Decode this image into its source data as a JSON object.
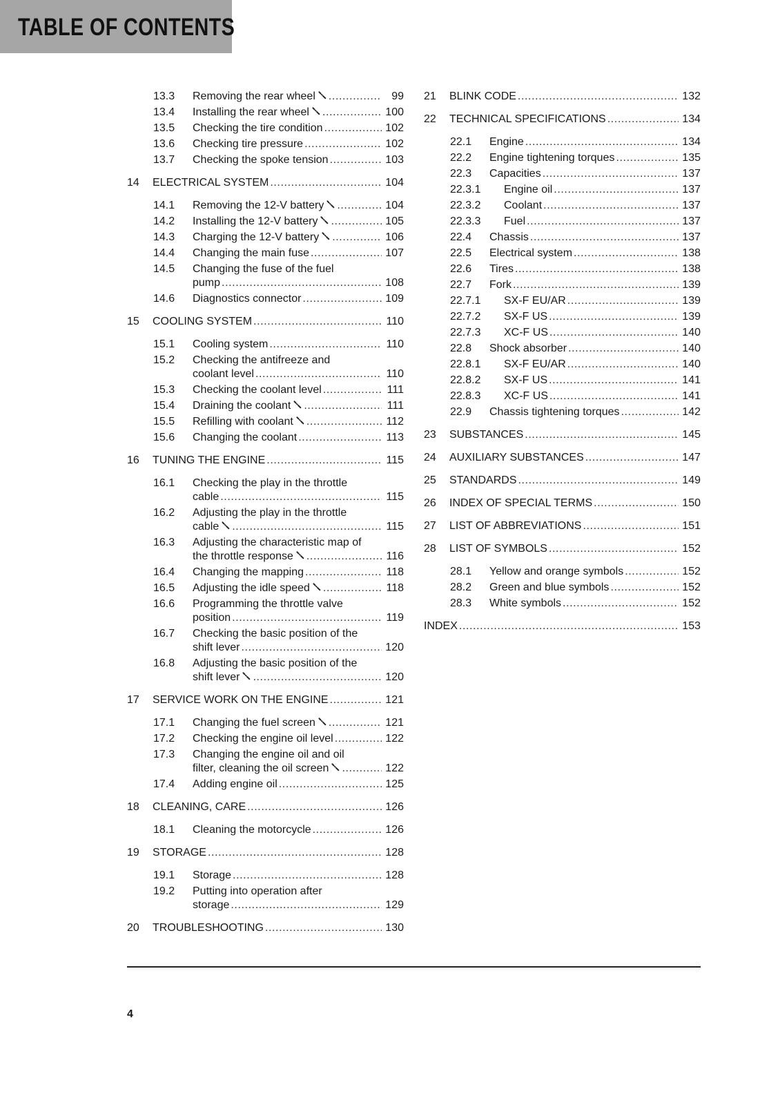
{
  "header": {
    "title": "TABLE OF CONTENTS"
  },
  "page_number": "4",
  "icons": {
    "wrench": "wrench-icon"
  },
  "left_column": [
    {
      "level": 1,
      "num": "13.3",
      "lines": [
        "Removing the rear wheel"
      ],
      "wrench": true,
      "page": "99"
    },
    {
      "level": 1,
      "num": "13.4",
      "lines": [
        "Installing the rear wheel"
      ],
      "wrench": true,
      "page": "100"
    },
    {
      "level": 1,
      "num": "13.5",
      "lines": [
        "Checking the tire condition"
      ],
      "page": "102"
    },
    {
      "level": 1,
      "num": "13.6",
      "lines": [
        "Checking tire pressure"
      ],
      "page": "102"
    },
    {
      "level": 1,
      "num": "13.7",
      "lines": [
        "Checking the spoke tension"
      ],
      "page": "103"
    },
    {
      "level": 0,
      "num": "14",
      "lines": [
        "ELECTRICAL SYSTEM"
      ],
      "page": "104"
    },
    {
      "level": 1,
      "num": "14.1",
      "lines": [
        "Removing the 12-V battery"
      ],
      "wrench": true,
      "page": "104"
    },
    {
      "level": 1,
      "num": "14.2",
      "lines": [
        "Installing the 12-V battery"
      ],
      "wrench": true,
      "page": "105"
    },
    {
      "level": 1,
      "num": "14.3",
      "lines": [
        "Charging the 12-V battery"
      ],
      "wrench": true,
      "page": "106"
    },
    {
      "level": 1,
      "num": "14.4",
      "lines": [
        "Changing the main fuse"
      ],
      "page": "107"
    },
    {
      "level": 1,
      "num": "14.5",
      "lines": [
        "Changing the fuse of the fuel",
        "pump"
      ],
      "page": "108"
    },
    {
      "level": 1,
      "num": "14.6",
      "lines": [
        "Diagnostics connector"
      ],
      "page": "109"
    },
    {
      "level": 0,
      "num": "15",
      "lines": [
        "COOLING SYSTEM"
      ],
      "page": "110"
    },
    {
      "level": 1,
      "num": "15.1",
      "lines": [
        "Cooling system"
      ],
      "page": "110"
    },
    {
      "level": 1,
      "num": "15.2",
      "lines": [
        "Checking the antifreeze and",
        "coolant level"
      ],
      "page": "110"
    },
    {
      "level": 1,
      "num": "15.3",
      "lines": [
        "Checking the coolant level"
      ],
      "page": "111"
    },
    {
      "level": 1,
      "num": "15.4",
      "lines": [
        "Draining the coolant"
      ],
      "wrench": true,
      "page": "111"
    },
    {
      "level": 1,
      "num": "15.5",
      "lines": [
        "Refilling with coolant"
      ],
      "wrench": true,
      "page": "112"
    },
    {
      "level": 1,
      "num": "15.6",
      "lines": [
        "Changing the coolant"
      ],
      "page": "113"
    },
    {
      "level": 0,
      "num": "16",
      "lines": [
        "TUNING THE ENGINE"
      ],
      "page": "115"
    },
    {
      "level": 1,
      "num": "16.1",
      "lines": [
        "Checking the play in the throttle",
        "cable"
      ],
      "page": "115"
    },
    {
      "level": 1,
      "num": "16.2",
      "lines": [
        "Adjusting the play in the throttle",
        "cable"
      ],
      "wrench": true,
      "page": "115"
    },
    {
      "level": 1,
      "num": "16.3",
      "lines": [
        "Adjusting the characteristic map of",
        "the throttle response"
      ],
      "wrench": true,
      "page": "116"
    },
    {
      "level": 1,
      "num": "16.4",
      "lines": [
        "Changing the mapping"
      ],
      "page": "118"
    },
    {
      "level": 1,
      "num": "16.5",
      "lines": [
        "Adjusting the idle speed"
      ],
      "wrench": true,
      "page": "118"
    },
    {
      "level": 1,
      "num": "16.6",
      "lines": [
        "Programming the throttle valve",
        "position"
      ],
      "page": "119"
    },
    {
      "level": 1,
      "num": "16.7",
      "lines": [
        "Checking the basic position of the",
        "shift lever"
      ],
      "page": "120"
    },
    {
      "level": 1,
      "num": "16.8",
      "lines": [
        "Adjusting the basic position of the",
        "shift lever"
      ],
      "wrench": true,
      "page": "120"
    },
    {
      "level": 0,
      "num": "17",
      "lines": [
        "SERVICE WORK ON THE ENGINE"
      ],
      "page": "121"
    },
    {
      "level": 1,
      "num": "17.1",
      "lines": [
        "Changing the fuel screen"
      ],
      "wrench": true,
      "page": "121"
    },
    {
      "level": 1,
      "num": "17.2",
      "lines": [
        "Checking the engine oil level"
      ],
      "page": "122"
    },
    {
      "level": 1,
      "num": "17.3",
      "lines": [
        "Changing the engine oil and oil",
        "filter, cleaning the oil screen"
      ],
      "wrench": true,
      "page": "122"
    },
    {
      "level": 1,
      "num": "17.4",
      "lines": [
        "Adding engine oil"
      ],
      "page": "125"
    },
    {
      "level": 0,
      "num": "18",
      "lines": [
        "CLEANING, CARE"
      ],
      "page": "126"
    },
    {
      "level": 1,
      "num": "18.1",
      "lines": [
        "Cleaning the motorcycle"
      ],
      "page": "126"
    },
    {
      "level": 0,
      "num": "19",
      "lines": [
        "STORAGE"
      ],
      "page": "128"
    },
    {
      "level": 1,
      "num": "19.1",
      "lines": [
        "Storage"
      ],
      "page": "128"
    },
    {
      "level": 1,
      "num": "19.2",
      "lines": [
        "Putting into operation after",
        "storage"
      ],
      "page": "129"
    },
    {
      "level": 0,
      "num": "20",
      "lines": [
        "TROUBLESHOOTING"
      ],
      "page": "130"
    }
  ],
  "right_column": [
    {
      "level": 0,
      "num": "21",
      "lines": [
        "BLINK CODE"
      ],
      "page": "132"
    },
    {
      "level": 0,
      "num": "22",
      "lines": [
        "TECHNICAL SPECIFICATIONS"
      ],
      "page": "134"
    },
    {
      "level": 1,
      "num": "22.1",
      "lines": [
        "Engine"
      ],
      "page": "134"
    },
    {
      "level": 1,
      "num": "22.2",
      "lines": [
        "Engine tightening torques"
      ],
      "page": "135"
    },
    {
      "level": 1,
      "num": "22.3",
      "lines": [
        "Capacities"
      ],
      "page": "137"
    },
    {
      "level": 2,
      "num": "22.3.1",
      "lines": [
        "Engine oil"
      ],
      "page": "137"
    },
    {
      "level": 2,
      "num": "22.3.2",
      "lines": [
        "Coolant"
      ],
      "page": "137"
    },
    {
      "level": 2,
      "num": "22.3.3",
      "lines": [
        "Fuel"
      ],
      "page": "137"
    },
    {
      "level": 1,
      "num": "22.4",
      "lines": [
        "Chassis"
      ],
      "page": "137"
    },
    {
      "level": 1,
      "num": "22.5",
      "lines": [
        "Electrical system"
      ],
      "page": "138"
    },
    {
      "level": 1,
      "num": "22.6",
      "lines": [
        "Tires"
      ],
      "page": "138"
    },
    {
      "level": 1,
      "num": "22.7",
      "lines": [
        "Fork"
      ],
      "page": "139"
    },
    {
      "level": 2,
      "num": "22.7.1",
      "lines": [
        "SX-F EU/AR"
      ],
      "page": "139"
    },
    {
      "level": 2,
      "num": "22.7.2",
      "lines": [
        "SX-F US"
      ],
      "page": "139"
    },
    {
      "level": 2,
      "num": "22.7.3",
      "lines": [
        "XC-F US"
      ],
      "page": "140"
    },
    {
      "level": 1,
      "num": "22.8",
      "lines": [
        "Shock absorber"
      ],
      "page": "140"
    },
    {
      "level": 2,
      "num": "22.8.1",
      "lines": [
        "SX-F EU/AR"
      ],
      "page": "140"
    },
    {
      "level": 2,
      "num": "22.8.2",
      "lines": [
        "SX-F US"
      ],
      "page": "141"
    },
    {
      "level": 2,
      "num": "22.8.3",
      "lines": [
        "XC-F US"
      ],
      "page": "141"
    },
    {
      "level": 1,
      "num": "22.9",
      "lines": [
        "Chassis tightening torques"
      ],
      "page": "142"
    },
    {
      "level": 0,
      "num": "23",
      "lines": [
        "SUBSTANCES"
      ],
      "page": "145"
    },
    {
      "level": 0,
      "num": "24",
      "lines": [
        "AUXILIARY SUBSTANCES"
      ],
      "page": "147"
    },
    {
      "level": 0,
      "num": "25",
      "lines": [
        "STANDARDS"
      ],
      "page": "149"
    },
    {
      "level": 0,
      "num": "26",
      "lines": [
        "INDEX OF SPECIAL TERMS"
      ],
      "page": "150"
    },
    {
      "level": 0,
      "num": "27",
      "lines": [
        "LIST OF ABBREVIATIONS"
      ],
      "page": "151"
    },
    {
      "level": 0,
      "num": "28",
      "lines": [
        "LIST OF SYMBOLS"
      ],
      "page": "152"
    },
    {
      "level": 1,
      "num": "28.1",
      "lines": [
        "Yellow and orange symbols"
      ],
      "page": "152"
    },
    {
      "level": 1,
      "num": "28.2",
      "lines": [
        "Green and blue symbols"
      ],
      "page": "152"
    },
    {
      "level": 1,
      "num": "28.3",
      "lines": [
        "White symbols"
      ],
      "page": "152"
    },
    {
      "level": 0,
      "num": "",
      "lines": [
        "INDEX"
      ],
      "page": "153"
    }
  ]
}
